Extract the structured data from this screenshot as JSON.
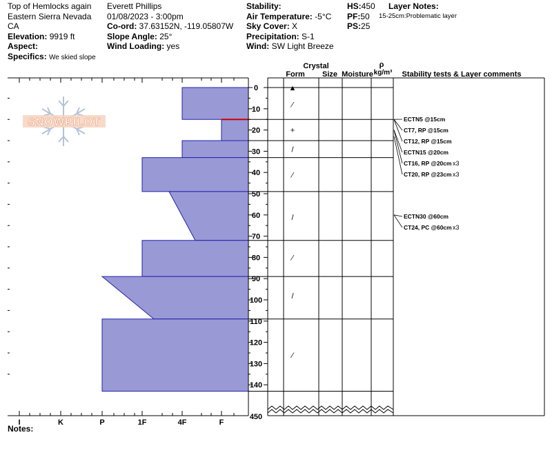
{
  "header": {
    "col1": {
      "location": "Top of Hemlocks again",
      "range": "Eastern Sierra Nevada",
      "state": "CA",
      "elevation_label": "Elevation:",
      "elevation": "9919 ft",
      "aspect_label": "Aspect:",
      "specifics_label": "Specifics:",
      "specifics": "We skied slope"
    },
    "col2": {
      "observer": "Everett Phillips",
      "datetime": "01/08/2023 - 3:00pm",
      "coord_label": "Co-ord:",
      "coord": "37.63152N, -119.05807W",
      "slope_label": "Slope Angle:",
      "slope": "25°",
      "wind_loading_label": "Wind Loading:",
      "wind_loading": "yes"
    },
    "col3": {
      "stability_label": "Stability:",
      "air_temp_label": "Air Temperature:",
      "air_temp": "-5°C",
      "sky_label": "Sky Cover:",
      "sky": "X",
      "precip_label": "Precipitation:",
      "precip": "S-1",
      "wind_label": "Wind:",
      "wind": "SW Light Breeze"
    },
    "col4": {
      "hs_label": "HS:",
      "hs": "450",
      "pf_label": "PF:",
      "pf": "50",
      "ps_label": "PS:",
      "ps": "25"
    },
    "layer_notes": {
      "title": "Layer Notes:",
      "note": "15-25cm:Problematic layer"
    }
  },
  "logo": {
    "text": "SNOWPILOT"
  },
  "columns": {
    "crystal": "Crystal",
    "form": "Form",
    "size": "Size",
    "moisture": "Moisture",
    "rho": "ρ",
    "rho_units": "kg/m³",
    "stability": "Stability tests & Layer comments"
  },
  "depth_ticks": [
    "0",
    "10",
    "20",
    "30",
    "40",
    "50",
    "60",
    "70",
    "80",
    "90",
    "100",
    "110",
    "120",
    "130",
    "140"
  ],
  "bottom_depth": "450",
  "hardness_ticks": [
    "I",
    "K",
    "P",
    "1F",
    "4F",
    "F"
  ],
  "notes_label": "Notes:",
  "colors": {
    "layer_fill": "#9999d6",
    "layer_stroke": "#2222aa",
    "weak_layer": "#cc0000"
  },
  "chart_data": {
    "type": "hand-hardness snow profile",
    "y_axis": "depth (cm), 0 at surface",
    "hardness_scale": [
      "I",
      "K",
      "P",
      "1F",
      "4F",
      "F"
    ],
    "layers": [
      {
        "top": 0,
        "bottom": 15,
        "hardness_top": "4F",
        "hardness_bottom": "4F"
      },
      {
        "top": 15,
        "bottom": 25,
        "hardness_top": "F",
        "hardness_bottom": "F"
      },
      {
        "top": 25,
        "bottom": 33,
        "hardness_top": "4F",
        "hardness_bottom": "4F"
      },
      {
        "top": 33,
        "bottom": 49,
        "hardness_top": "1F",
        "hardness_bottom": "1F"
      },
      {
        "top": 49,
        "bottom": 72,
        "hardness_top": "1F+",
        "hardness_bottom": "4F-"
      },
      {
        "top": 72,
        "bottom": 89,
        "hardness_top": "1F",
        "hardness_bottom": "1F"
      },
      {
        "top": 89,
        "bottom": 109,
        "hardness_top": "P",
        "hardness_bottom": "1F-"
      },
      {
        "top": 109,
        "bottom": 143,
        "hardness_top": "P",
        "hardness_bottom": "P"
      }
    ],
    "crystal_symbols": [
      {
        "depth": 0,
        "symbol": "▲"
      },
      {
        "depth": 8,
        "symbol": "⁄"
      },
      {
        "depth": 20,
        "symbol": "+"
      },
      {
        "depth": 29,
        "symbol": "/"
      },
      {
        "depth": 41,
        "symbol": "⁄"
      },
      {
        "depth": 61,
        "symbol": "/"
      },
      {
        "depth": 80,
        "symbol": "⁄"
      },
      {
        "depth": 98,
        "symbol": "/"
      },
      {
        "depth": 126,
        "symbol": "⁄"
      }
    ],
    "stability_tests": [
      {
        "depth": 15,
        "label": "ECTN5 @15cm",
        "mult": ""
      },
      {
        "depth": 15,
        "label": "CT7, RP @15cm",
        "mult": ""
      },
      {
        "depth": 15,
        "label": "CT12, RP @15cm",
        "mult": ""
      },
      {
        "depth": 20,
        "label": "ECTN15 @20cm",
        "mult": ""
      },
      {
        "depth": 20,
        "label": "CT16, RP @20cm",
        "mult": "x3"
      },
      {
        "depth": 23,
        "label": "CT20, RP @23cm",
        "mult": "x3"
      },
      {
        "depth": 60,
        "label": "ECTN30 @60cm",
        "mult": ""
      },
      {
        "depth": 60,
        "label": "CT24, PC @60cm",
        "mult": "x3"
      }
    ]
  }
}
